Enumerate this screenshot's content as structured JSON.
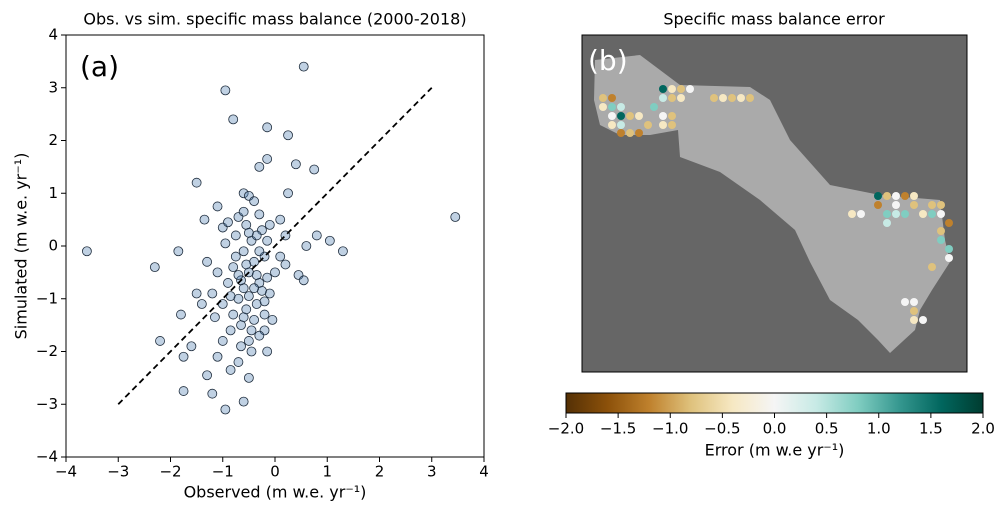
{
  "chart_data": [
    {
      "type": "scatter",
      "panel_label": "(a)",
      "title": "Obs. vs sim. specific mass balance (2000-2018)",
      "x_label": "Observed (m w.e. yr⁻¹)",
      "y_label": "Simulated (m w.e. yr⁻¹)",
      "xlim": [
        -4,
        4
      ],
      "ylim": [
        -4,
        4
      ],
      "xticks": [
        {
          "value": -4,
          "label": "−4"
        },
        {
          "value": -3,
          "label": "−3"
        },
        {
          "value": -2,
          "label": "−2"
        },
        {
          "value": -1,
          "label": "−1"
        },
        0,
        1,
        2,
        3,
        4
      ],
      "yticks": [
        {
          "value": -4,
          "label": "−4"
        },
        {
          "value": -3,
          "label": "−3"
        },
        {
          "value": -2,
          "label": "−2"
        },
        {
          "value": -1,
          "label": "−1"
        },
        0,
        1,
        2,
        3,
        4
      ],
      "color": "#4a7bb0",
      "edge_color": "#1f2d3d",
      "reference_line": {
        "x": [
          -3,
          3
        ],
        "y": [
          -3,
          3
        ]
      },
      "x": [
        -3.6,
        3.45,
        0.55,
        -0.95,
        -0.8,
        -2.3,
        -2.2,
        -1.5,
        -1.75,
        -0.95,
        -0.6,
        -0.5,
        1.05,
        1.3,
        0.75,
        0.25,
        -0.15,
        0.4,
        0.25,
        0.8,
        0.45,
        0.55,
        -1.85,
        -1.6,
        -1.75,
        -1.3,
        -1.2,
        -1.1,
        -0.85,
        -1.15,
        -1.8,
        -1.5,
        -1.35,
        -1.1,
        -1.0,
        -0.6,
        -0.3,
        -0.15,
        -0.5,
        0.1,
        0.6,
        0.2,
        -0.15,
        -0.2,
        -0.5,
        -0.6,
        -0.4,
        -0.7,
        -0.3,
        -0.55,
        -0.45,
        -0.8,
        -0.2,
        -0.65,
        -0.35,
        -0.9,
        -0.5,
        -0.25,
        -0.75,
        -0.4,
        -0.6,
        -1.0,
        -0.1,
        -0.3,
        -0.7,
        -0.85,
        -0.45,
        -0.55,
        -0.2,
        -1.1,
        -0.35,
        -0.65,
        -0.15,
        -0.95,
        -0.5,
        -0.8,
        -0.3,
        -0.6,
        -0.4,
        0.0,
        -1.2,
        -0.7,
        -0.25,
        -0.55,
        -0.45,
        -0.9,
        -0.1,
        -0.65,
        -1.3,
        -0.35,
        0.1,
        -0.75,
        -0.5,
        -0.2,
        -0.85,
        -0.4,
        -0.6,
        -1.0,
        -0.3,
        0.2,
        -0.15,
        -0.7,
        -1.4,
        -0.05
      ],
      "y": [
        -0.1,
        0.55,
        3.4,
        2.95,
        2.4,
        -0.4,
        -1.8,
        1.2,
        -2.75,
        -3.1,
        -2.95,
        -2.5,
        0.1,
        -0.1,
        1.45,
        2.1,
        2.25,
        1.55,
        1.0,
        0.2,
        -0.55,
        -0.65,
        -0.1,
        -1.9,
        -2.1,
        -2.45,
        -2.8,
        -2.1,
        -2.35,
        -1.35,
        -1.3,
        -0.9,
        0.5,
        0.75,
        0.35,
        1.0,
        1.5,
        1.65,
        0.95,
        0.5,
        0.0,
        -0.35,
        -2.0,
        -1.6,
        -0.5,
        -0.8,
        -0.3,
        -1.0,
        -0.7,
        -1.2,
        0.1,
        -0.4,
        -0.2,
        -1.5,
        -1.1,
        -0.7,
        -1.8,
        0.3,
        0.2,
        -1.4,
        -0.1,
        -1.1,
        -0.9,
        0.6,
        0.55,
        -1.6,
        -2.0,
        0.4,
        -1.3,
        -0.5,
        -0.55,
        -0.65,
        0.1,
        0.05,
        -0.95,
        -1.3,
        -1.7,
        0.65,
        0.85,
        -0.5,
        -0.9,
        -2.2,
        -0.85,
        -0.35,
        -1.6,
        0.45,
        0.4,
        -1.9,
        -0.3,
        0.2,
        -0.2,
        -0.2,
        0.25,
        -1.05,
        -0.95,
        -0.8,
        -1.35,
        -1.8,
        -0.1,
        0.2,
        -0.6,
        -0.55,
        -1.1,
        -1.4
      ]
    },
    {
      "type": "map",
      "panel_label": "(b)",
      "title": "Specific mass balance error",
      "colorbar_label": "Error (m w.e yr⁻¹)",
      "clim": [
        -2,
        2
      ],
      "cticks": [
        {
          "value": -2,
          "label": "−2.0"
        },
        {
          "value": -1.5,
          "label": "−1.5"
        },
        {
          "value": -1,
          "label": "−1.0"
        },
        {
          "value": -0.5,
          "label": "−0.5"
        },
        {
          "value": 0,
          "label": "0.0"
        },
        {
          "value": 0.5,
          "label": "0.5"
        },
        {
          "value": 1,
          "label": "1.0"
        },
        {
          "value": 1.5,
          "label": "1.5"
        },
        {
          "value": 2,
          "label": "2.0"
        }
      ],
      "colormap": [
        "#543005",
        "#8c510a",
        "#bf812d",
        "#dfc27d",
        "#f6e8c3",
        "#f5f5f5",
        "#c7eae5",
        "#80cdc1",
        "#35978f",
        "#01665e",
        "#003c30"
      ]
    }
  ]
}
